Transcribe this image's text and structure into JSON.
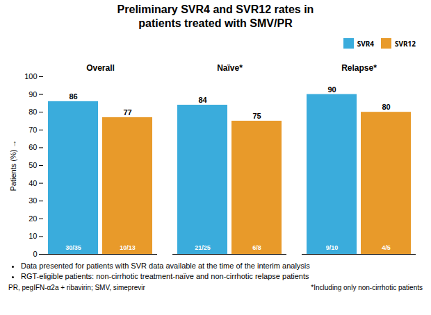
{
  "chart_data": {
    "type": "bar",
    "title": "Preliminary SVR4 and SVR12 rates in\npatients treated with SMV/PR",
    "ylabel": "Patients (%)",
    "categories": [
      "Overall",
      "Naïve*",
      "Relapse*"
    ],
    "series": [
      {
        "name": "SVR4",
        "color": "#3aacdc",
        "values": [
          86,
          84,
          90
        ],
        "fraction_labels": [
          "30/35",
          "21/25",
          "9/10"
        ]
      },
      {
        "name": "SVR12",
        "color": "#e89a2a",
        "values": [
          77,
          75,
          80
        ],
        "fraction_labels": [
          "10/13",
          "6/8",
          "4/5"
        ]
      }
    ],
    "ylim": [
      0,
      100
    ],
    "yticks": [
      0,
      10,
      20,
      30,
      40,
      50,
      60,
      70,
      80,
      90,
      100
    ],
    "grid": false,
    "legend": "upper right",
    "data_labels": true,
    "tick_labels": "y",
    "footnotes": [
      "Data presented for patients with SVR data available at the time of the interim analysis",
      "RGT-eligible patients: non-cirrhotic treatment-naïve and non-cirrhotic relapse patients"
    ],
    "footer_left": "PR, pegIFN-α2a + ribavirin; SMV, simeprevir",
    "footer_right": "*Including only non-cirrhotic patients"
  }
}
